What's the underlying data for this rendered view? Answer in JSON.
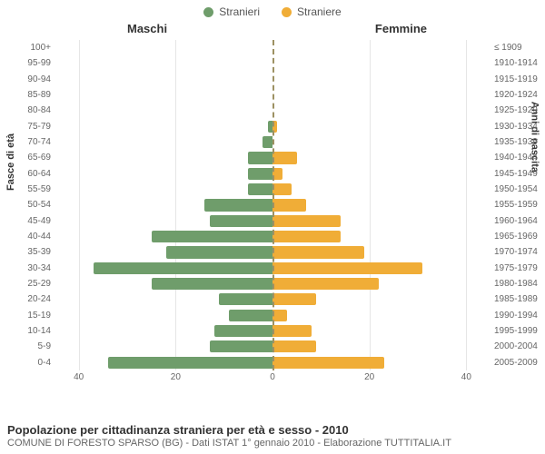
{
  "chart": {
    "type": "population-pyramid",
    "legend": [
      {
        "label": "Stranieri",
        "color": "#6f9d6b"
      },
      {
        "label": "Straniere",
        "color": "#f0ad37"
      }
    ],
    "header_left": "Maschi",
    "header_right": "Femmine",
    "y_axis_left_title": "Fasce di età",
    "y_axis_right_title": "Anni di nascita",
    "x_max": 45,
    "x_ticks_left": [
      40,
      20,
      0
    ],
    "x_ticks_right": [
      0,
      20,
      40
    ],
    "gridlines": [
      -40,
      -20,
      0,
      20,
      40
    ],
    "bar_color_left": "#6f9d6b",
    "bar_color_right": "#f0ad37",
    "background_color": "#ffffff",
    "grid_color": "#e6e6e6",
    "center_line_color": "#9d9163",
    "label_fontsize": 10,
    "rows": [
      {
        "age": "100+",
        "birth": "≤ 1909",
        "m": 0,
        "f": 0
      },
      {
        "age": "95-99",
        "birth": "1910-1914",
        "m": 0,
        "f": 0
      },
      {
        "age": "90-94",
        "birth": "1915-1919",
        "m": 0,
        "f": 0
      },
      {
        "age": "85-89",
        "birth": "1920-1924",
        "m": 0,
        "f": 0
      },
      {
        "age": "80-84",
        "birth": "1925-1929",
        "m": 0,
        "f": 0
      },
      {
        "age": "75-79",
        "birth": "1930-1934",
        "m": 1,
        "f": 1
      },
      {
        "age": "70-74",
        "birth": "1935-1939",
        "m": 2,
        "f": 0
      },
      {
        "age": "65-69",
        "birth": "1940-1944",
        "m": 5,
        "f": 5
      },
      {
        "age": "60-64",
        "birth": "1945-1949",
        "m": 5,
        "f": 2
      },
      {
        "age": "55-59",
        "birth": "1950-1954",
        "m": 5,
        "f": 4
      },
      {
        "age": "50-54",
        "birth": "1955-1959",
        "m": 14,
        "f": 7
      },
      {
        "age": "45-49",
        "birth": "1960-1964",
        "m": 13,
        "f": 14
      },
      {
        "age": "40-44",
        "birth": "1965-1969",
        "m": 25,
        "f": 14
      },
      {
        "age": "35-39",
        "birth": "1970-1974",
        "m": 22,
        "f": 19
      },
      {
        "age": "30-34",
        "birth": "1975-1979",
        "m": 37,
        "f": 31
      },
      {
        "age": "25-29",
        "birth": "1980-1984",
        "m": 25,
        "f": 22
      },
      {
        "age": "20-24",
        "birth": "1985-1989",
        "m": 11,
        "f": 9
      },
      {
        "age": "15-19",
        "birth": "1990-1994",
        "m": 9,
        "f": 3
      },
      {
        "age": "10-14",
        "birth": "1995-1999",
        "m": 12,
        "f": 8
      },
      {
        "age": "5-9",
        "birth": "2000-2004",
        "m": 13,
        "f": 9
      },
      {
        "age": "0-4",
        "birth": "2005-2009",
        "m": 34,
        "f": 23
      }
    ]
  },
  "footer": {
    "title": "Popolazione per cittadinanza straniera per età e sesso - 2010",
    "subtitle": "COMUNE DI FORESTO SPARSO (BG) - Dati ISTAT 1° gennaio 2010 - Elaborazione TUTTITALIA.IT"
  }
}
